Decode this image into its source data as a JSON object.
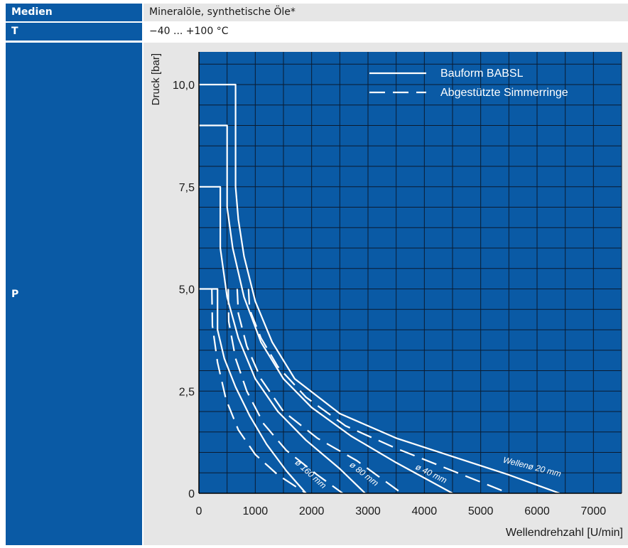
{
  "rows": {
    "medien": {
      "label": "Medien",
      "value": "Mineralöle, synthetische Öle*"
    },
    "t": {
      "label": "T",
      "value": "−40 ... +100 °C"
    },
    "p": {
      "label": "P"
    }
  },
  "chart_data": {
    "type": "line",
    "ylabel": "Druck [bar]",
    "xlabel": "Wellendrehzahl [U/min]",
    "xlim": [
      0,
      7500
    ],
    "ylim": [
      0,
      10.8
    ],
    "x_ticks": [
      0,
      1000,
      2000,
      3000,
      4000,
      5000,
      6000,
      7000
    ],
    "y_ticks": [
      0,
      2.5,
      5.0,
      7.5,
      10.0
    ],
    "x_tick_labels": [
      "0",
      "1000",
      "2000",
      "3000",
      "4000",
      "5000",
      "6000",
      "7000"
    ],
    "y_tick_labels": [
      "0",
      "2,5",
      "5,0",
      "7,5",
      "10,0"
    ],
    "grid": true,
    "colors": {
      "background": "#0a5aa5",
      "grid": "#0b1b30",
      "lines": "#ffffff"
    },
    "legend": {
      "position": "top-right",
      "entries": [
        {
          "label": "Bauform BABSL",
          "style": "solid"
        },
        {
          "label": "Abgestützte Simmerringe",
          "style": "dashed"
        }
      ]
    },
    "series": [
      {
        "style": "solid",
        "group": "Wellenø 20 mm",
        "points": [
          [
            0,
            10
          ],
          [
            650,
            10
          ],
          [
            650,
            7.5
          ],
          [
            700,
            6.7
          ],
          [
            800,
            5.8
          ],
          [
            1000,
            4.7
          ],
          [
            1300,
            3.7
          ],
          [
            1700,
            2.8
          ],
          [
            2500,
            1.95
          ],
          [
            3500,
            1.35
          ],
          [
            4500,
            0.9
          ],
          [
            5500,
            0.45
          ],
          [
            6400,
            0
          ]
        ]
      },
      {
        "style": "solid",
        "group": "ø 40 mm",
        "points": [
          [
            0,
            9
          ],
          [
            500,
            9
          ],
          [
            500,
            7
          ],
          [
            600,
            6
          ],
          [
            800,
            4.8
          ],
          [
            1100,
            3.7
          ],
          [
            1500,
            2.8
          ],
          [
            2000,
            2.1
          ],
          [
            2700,
            1.4
          ],
          [
            3500,
            0.75
          ],
          [
            4500,
            0
          ]
        ]
      },
      {
        "style": "solid",
        "group": "ø 80 mm",
        "points": [
          [
            0,
            7.5
          ],
          [
            380,
            7.5
          ],
          [
            380,
            6
          ],
          [
            500,
            4.8
          ],
          [
            700,
            3.8
          ],
          [
            1000,
            2.8
          ],
          [
            1400,
            2
          ],
          [
            1900,
            1.3
          ],
          [
            2500,
            0.6
          ],
          [
            2950,
            0
          ]
        ]
      },
      {
        "style": "solid",
        "group": "ø 160 mm",
        "points": [
          [
            0,
            5
          ],
          [
            330,
            5
          ],
          [
            330,
            4
          ],
          [
            450,
            3.3
          ],
          [
            650,
            2.6
          ],
          [
            900,
            1.9
          ],
          [
            1200,
            1.2
          ],
          [
            1550,
            0.55
          ],
          [
            1900,
            0
          ]
        ]
      },
      {
        "style": "dashed",
        "group": "Wellenø 20 mm",
        "points": [
          [
            880,
            5
          ],
          [
            900,
            4.5
          ],
          [
            1100,
            3.8
          ],
          [
            1400,
            3.1
          ],
          [
            1900,
            2.35
          ],
          [
            2600,
            1.65
          ],
          [
            3500,
            1.1
          ],
          [
            4500,
            0.55
          ],
          [
            5500,
            0
          ]
        ]
      },
      {
        "style": "dashed",
        "group": "ø 40 mm",
        "points": [
          [
            680,
            5
          ],
          [
            700,
            4.4
          ],
          [
            850,
            3.6
          ],
          [
            1100,
            2.8
          ],
          [
            1500,
            2
          ],
          [
            2100,
            1.35
          ],
          [
            2800,
            0.8
          ],
          [
            3600,
            0
          ]
        ]
      },
      {
        "style": "dashed",
        "group": "ø 80 mm",
        "points": [
          [
            520,
            5
          ],
          [
            530,
            4.2
          ],
          [
            650,
            3.3
          ],
          [
            850,
            2.5
          ],
          [
            1150,
            1.7
          ],
          [
            1550,
            1.05
          ],
          [
            2100,
            0.45
          ],
          [
            2550,
            0
          ]
        ]
      },
      {
        "style": "dashed",
        "group": "ø 160 mm",
        "points": [
          [
            230,
            5
          ],
          [
            240,
            4.1
          ],
          [
            330,
            3.2
          ],
          [
            480,
            2.3
          ],
          [
            700,
            1.55
          ],
          [
            1000,
            0.95
          ],
          [
            1400,
            0.45
          ],
          [
            1900,
            0
          ]
        ]
      }
    ],
    "annotations": [
      {
        "text": "Wellenø 20 mm",
        "x": 5900,
        "y": 0.58,
        "rotate": 14
      },
      {
        "text": "ø 40 mm",
        "x": 4100,
        "y": 0.42,
        "rotate": 26
      },
      {
        "text": "ø 80 mm",
        "x": 2900,
        "y": 0.42,
        "rotate": 38
      },
      {
        "text": "ø 160 mm",
        "x": 1950,
        "y": 0.42,
        "rotate": 42
      }
    ]
  }
}
